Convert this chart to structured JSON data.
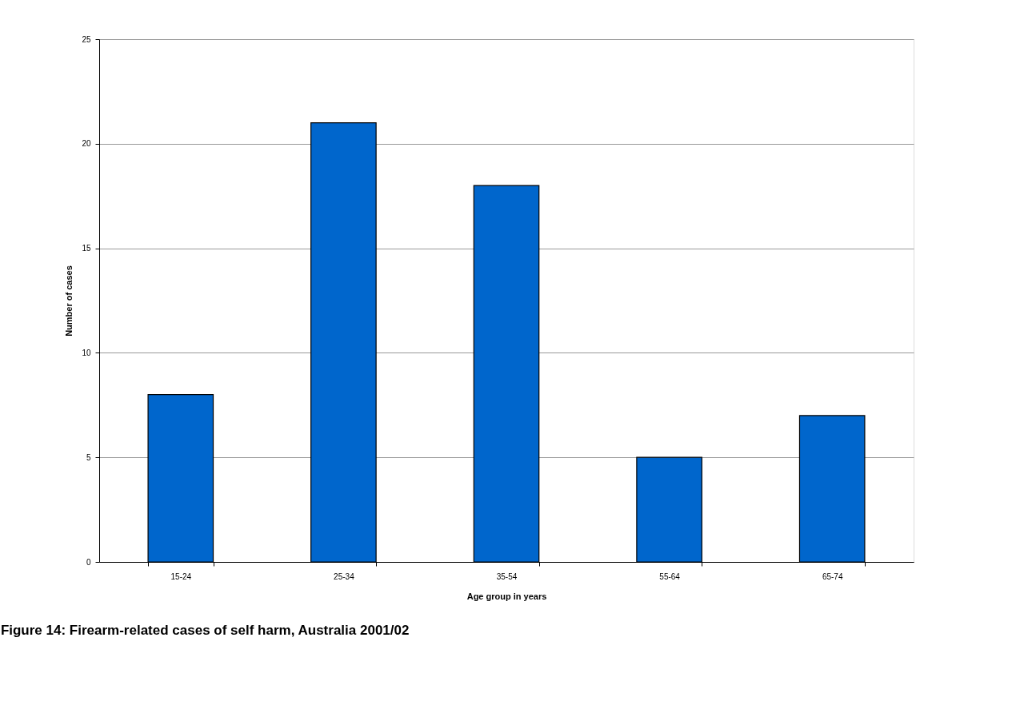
{
  "chart_data": {
    "type": "bar",
    "title": "Figure 14: Firearm-related cases of self harm, Australia 2001/02",
    "xlabel": "Age group in years",
    "ylabel": "Number of cases",
    "categories": [
      "15-24",
      "25-34",
      "35-54",
      "55-64",
      "65-74"
    ],
    "values": [
      8,
      21,
      18,
      5,
      7
    ],
    "color": "#0066cc",
    "ylim": [
      0,
      25
    ],
    "yticks": [
      0,
      5,
      10,
      15,
      20,
      25
    ],
    "grid": "y"
  }
}
